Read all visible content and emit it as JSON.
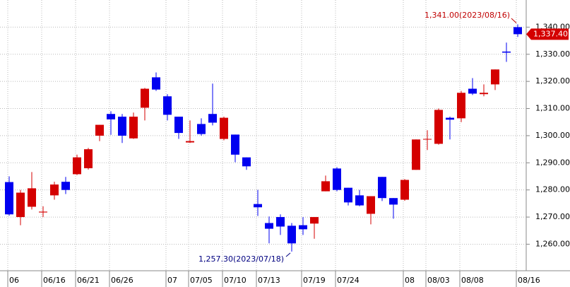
{
  "chart_data": {
    "type": "candlestick",
    "categories": [
      "06",
      null,
      null,
      "06/16",
      null,
      null,
      "06/21",
      null,
      null,
      "06/26",
      null,
      null,
      null,
      null,
      "07",
      null,
      "07/05",
      null,
      null,
      "07/10",
      null,
      null,
      "07/13",
      null,
      null,
      null,
      "07/19",
      null,
      null,
      "07/24",
      null,
      null,
      null,
      null,
      null,
      "08",
      null,
      "08/03",
      null,
      null,
      "08/08",
      null,
      null,
      null,
      null,
      "08/16"
    ],
    "open": [
      1282.9,
      1270,
      1273.8,
      1271.7,
      1278,
      1283,
      1285.8,
      1288,
      1300,
      1308,
      1307,
      1299,
      1310.3,
      1321.5,
      1314.5,
      1307,
      1297.5,
      1304.3,
      1308,
      1298.8,
      1300.4,
      1292,
      1274.8,
      1267.8,
      1270,
      1266.8,
      1267,
      1267.6,
      1279.5,
      1287.9,
      1280.8,
      1278,
      1271.2,
      1284.8,
      1277,
      1276.4,
      1287.4,
      1298.6,
      1297,
      1306.6,
      1306.4,
      1317.3,
      1315.3,
      1318.9,
      1331,
      1340
    ],
    "high": [
      1285,
      1280,
      1286.6,
      1274,
      1283,
      1284.8,
      1293,
      1295.5,
      1304,
      1309,
      1308,
      1308.5,
      1317.6,
      1323.3,
      1315.3,
      1307,
      1305.6,
      1306.4,
      1319.2,
      1307,
      1300.4,
      1292,
      1280,
      1270.2,
      1271,
      1267.8,
      1270,
      1270,
      1285.3,
      1288.4,
      1280.8,
      1280,
      1277.7,
      1284.8,
      1277,
      1284,
      1298.6,
      1302,
      1310,
      1307,
      1316.5,
      1321.2,
      1318.9,
      1324.4,
      1334.3,
      1341
    ],
    "low": [
      1270.5,
      1267,
      1272.8,
      1270,
      1276.4,
      1278.5,
      1285.5,
      1287.5,
      1298,
      1300.3,
      1297.3,
      1298.8,
      1305.6,
      1316.5,
      1305.6,
      1298.8,
      1297.3,
      1300,
      1303.8,
      1298.3,
      1290.2,
      1287.4,
      1270.4,
      1260.3,
      1263.4,
      1257.3,
      1263.4,
      1262,
      1279.5,
      1279.5,
      1274.3,
      1274,
      1267.3,
      1275.9,
      1269.4,
      1276,
      1287.4,
      1294.7,
      1296.7,
      1298.6,
      1305,
      1315,
      1314.5,
      1316.8,
      1327.2,
      1336.4
    ],
    "close": [
      1271,
      1279,
      1280.6,
      1272,
      1282,
      1280,
      1292,
      1295,
      1304,
      1306,
      1300,
      1307,
      1317.3,
      1317,
      1307.7,
      1301,
      1298,
      1300.6,
      1304.8,
      1306.6,
      1293,
      1288.7,
      1273.6,
      1265.7,
      1266.5,
      1260.3,
      1265.5,
      1270,
      1283.2,
      1280,
      1275.4,
      1274.3,
      1277.7,
      1277,
      1274.6,
      1283.7,
      1298.6,
      1298.8,
      1309.5,
      1305.9,
      1315.8,
      1315.5,
      1315.8,
      1324.4,
      1330.6,
      1337.4
    ],
    "up_color": "#d40000",
    "down_color": "#0000f0",
    "ylim": [
      1251,
      1350
    ],
    "yticks": [
      {
        "value": 1260,
        "label": "1,260.00"
      },
      {
        "value": 1270,
        "label": "1,270.00"
      },
      {
        "value": 1280,
        "label": "1,280.00"
      },
      {
        "value": 1290,
        "label": "1,290.00"
      },
      {
        "value": 1300,
        "label": "1,300.00"
      },
      {
        "value": 1310,
        "label": "1,310.00"
      },
      {
        "value": 1320,
        "label": "1,320.00"
      },
      {
        "value": 1330,
        "label": "1,330.00"
      },
      {
        "value": 1340,
        "label": "1,340.00"
      }
    ],
    "grid": true,
    "annotations": [
      {
        "text": "1,341.00(2023/08/16)",
        "value": 1341,
        "color": "#c00000"
      },
      {
        "text": "1,257.30(2023/07/18)",
        "value": 1257.3,
        "color": "#000080"
      }
    ],
    "last_price": {
      "value": 1337.4,
      "label": "1,337.40"
    }
  }
}
